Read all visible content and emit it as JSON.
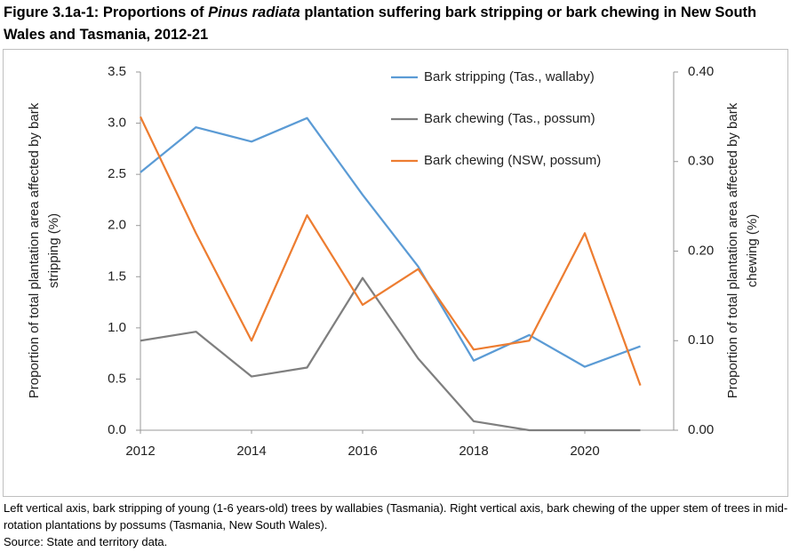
{
  "chart_data": {
    "type": "line",
    "title": [
      "Figure 3.1a-1: Proportions of ",
      "Pinus radiata",
      " plantation suffering bark stripping or bark chewing in New South Wales and Tasmania, 2012-21"
    ],
    "x": [
      2012,
      2013,
      2014,
      2015,
      2016,
      2017,
      2018,
      2019,
      2020,
      2021
    ],
    "xlim": [
      2012,
      2021.6
    ],
    "xticks": [
      2012,
      2014,
      2016,
      2018,
      2020
    ],
    "ylim": [
      0,
      3.5
    ],
    "yticks": [
      {
        "value": 0,
        "label": "0.0"
      },
      0.5,
      {
        "value": 1,
        "label": "1.0"
      },
      1.5,
      {
        "value": 2,
        "label": "2.0"
      },
      2.5,
      {
        "value": 3,
        "label": "3.0"
      },
      3.5
    ],
    "y2lim": [
      0,
      0.4
    ],
    "y2ticks": [
      {
        "value": 0,
        "label": "0.00"
      },
      {
        "value": 0.1,
        "label": "0.10"
      },
      {
        "value": 0.2,
        "label": "0.20"
      },
      {
        "value": 0.3,
        "label": "0.30"
      },
      {
        "value": 0.4,
        "label": "0.40"
      }
    ],
    "ylabel": [
      "Proportion of total plantation area affected by bark",
      "stripping (%)"
    ],
    "y2label": [
      "Proportion of total plantation area affected by bark",
      "chewing (%)"
    ],
    "grid": false,
    "legend": "top-right",
    "series": [
      {
        "name": "Bark stripping (Tas., wallaby)",
        "color": "#5b9bd5",
        "values": [
          2.52,
          2.96,
          2.82,
          3.05,
          2.3,
          1.6,
          0.68,
          0.93,
          0.62,
          0.82
        ]
      },
      {
        "name": "Bark chewing (Tas., possum)",
        "color": "#7f7f7f",
        "axis": "y2",
        "values": [
          0.1,
          0.11,
          0.06,
          0.07,
          0.17,
          0.08,
          0.01,
          0,
          0,
          0
        ]
      },
      {
        "name": "Bark chewing (NSW, possum)",
        "color": "#ed7d31",
        "axis": "y2",
        "values": [
          0.35,
          0.22,
          0.1,
          0.24,
          0.14,
          0.18,
          0.09,
          0.1,
          0.22,
          0.05
        ]
      }
    ],
    "notes": [
      "Left vertical axis, bark stripping of young (1-6 years-old) trees by wallabies (Tasmania). Right vertical axis, bark chewing of the upper stem of trees in mid-rotation plantations by possums (Tasmania, New South Wales).",
      "Source: State and territory data."
    ]
  }
}
